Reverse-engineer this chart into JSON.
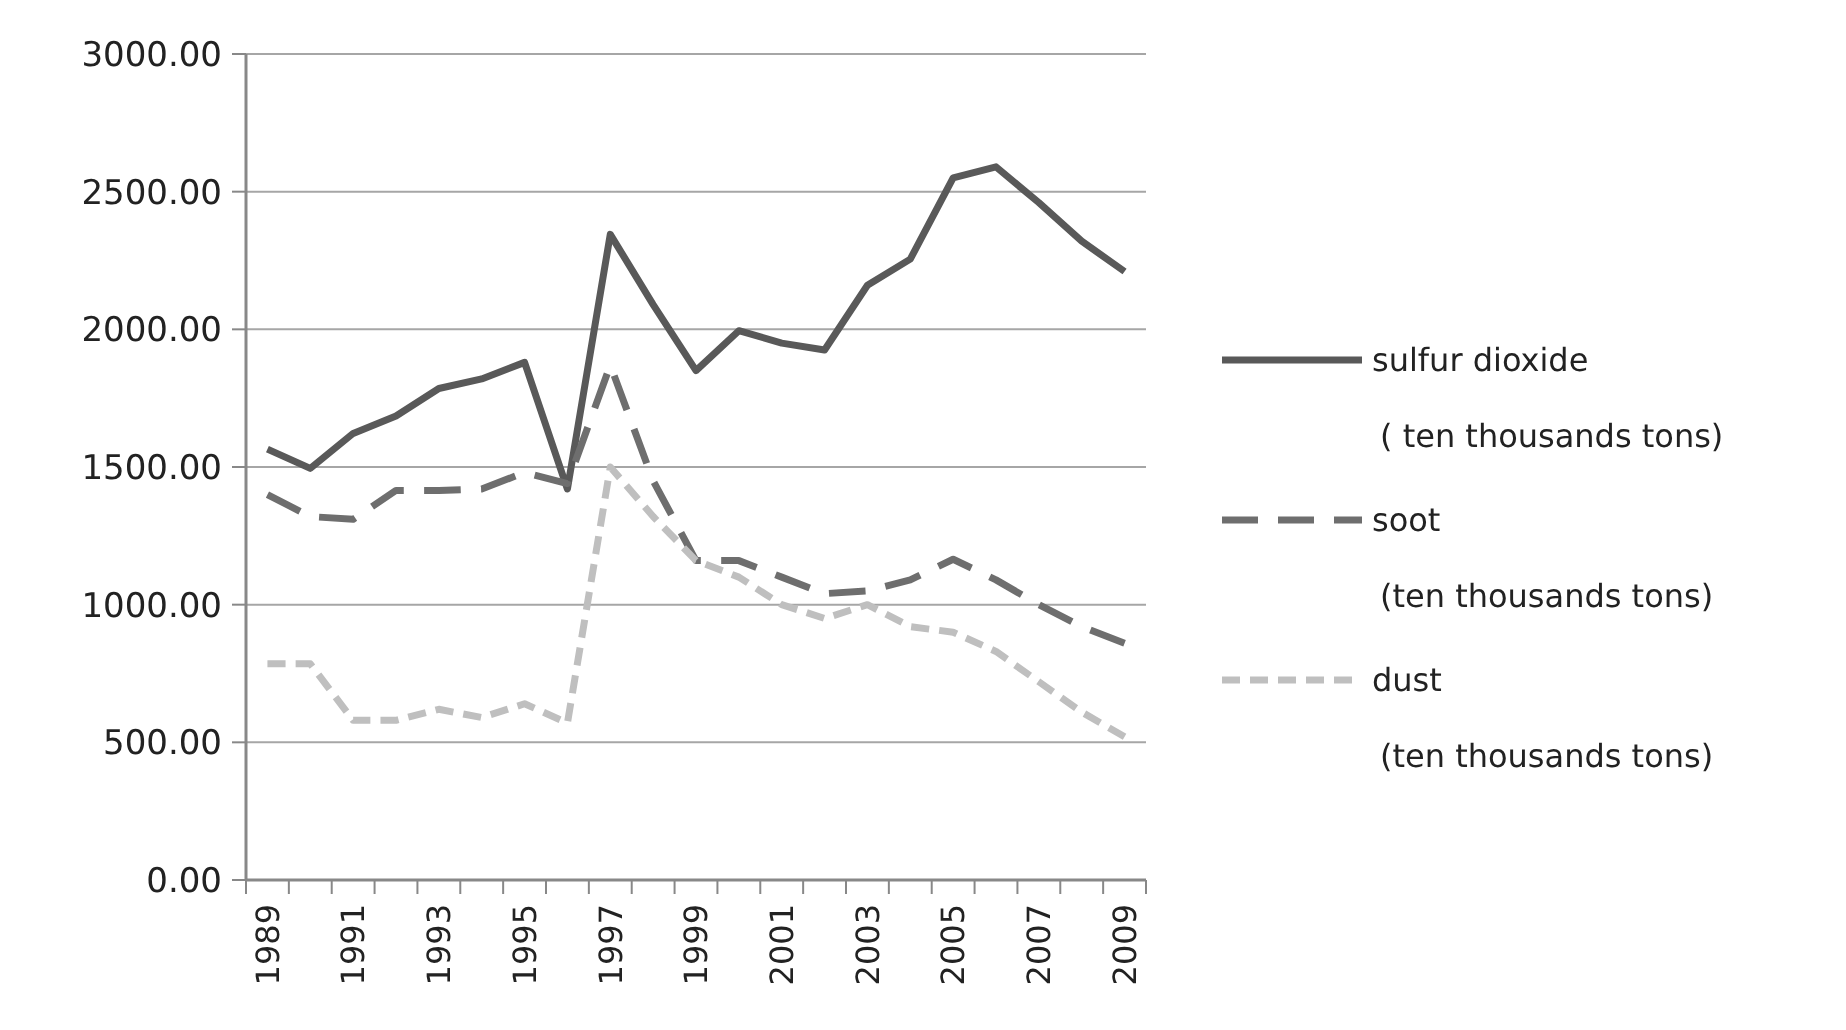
{
  "chart_data": {
    "type": "line",
    "categories": [
      "1989",
      null,
      "1991",
      null,
      "1993",
      null,
      "1995",
      null,
      "1997",
      null,
      "1999",
      null,
      "2001",
      null,
      "2003",
      null,
      "2005",
      null,
      "2007",
      null,
      "2009"
    ],
    "series": [
      {
        "name": "sulfur dioxide\n( ten thousands tons)",
        "color": "#595959",
        "line_style": "solid",
        "values": [
          1565,
          1495,
          1622,
          1685,
          1785,
          1820,
          1880,
          1420,
          2345,
          2090,
          1850,
          1995,
          1950,
          1925,
          2160,
          2255,
          2550,
          2590,
          2460,
          2320,
          2210
        ]
      },
      {
        "name": "soot\n(ten thousands tons)",
        "color": "#6e6e6e",
        "line_style": "dashed",
        "values": [
          1400,
          1320,
          1310,
          1415,
          1415,
          1420,
          1480,
          1440,
          1870,
          1450,
          1160,
          1160,
          1100,
          1040,
          1050,
          1090,
          1165,
          1090,
          1000,
          920,
          860
        ]
      },
      {
        "name": "dust\n(ten thousands tons)",
        "color": "#bfbfbf",
        "line_style": "dotted",
        "values": [
          785,
          785,
          580,
          580,
          620,
          590,
          640,
          570,
          1500,
          1320,
          1160,
          1100,
          1000,
          950,
          1000,
          920,
          900,
          830,
          720,
          610,
          520
        ]
      }
    ],
    "ylim": [
      0,
      3000
    ],
    "yticks": [
      {
        "value": 0,
        "label": "0.00"
      },
      {
        "value": 500,
        "label": "500.00"
      },
      {
        "value": 1000,
        "label": "1000.00"
      },
      {
        "value": 1500,
        "label": "1500.00"
      },
      {
        "value": 2000,
        "label": "2000.00"
      },
      {
        "value": 2500,
        "label": "2500.00"
      },
      {
        "value": 3000,
        "label": "3000.00"
      }
    ],
    "grid": "y",
    "legend": "right"
  }
}
